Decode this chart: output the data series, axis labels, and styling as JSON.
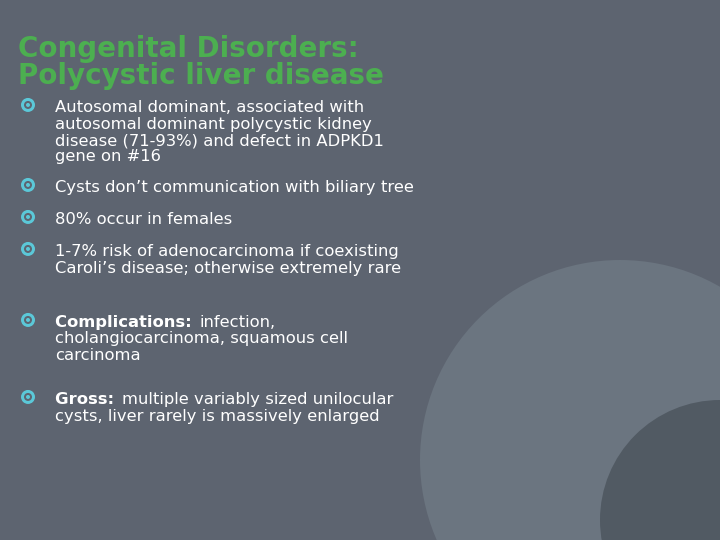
{
  "title_line1": "Congenital Disorders:",
  "title_line2": "Polycystic liver disease",
  "title_color": "#4CAF50",
  "background_color": "#5d6470",
  "text_color": "#ffffff",
  "bullet_color": "#5bc8d8",
  "bullets": [
    {
      "lines": [
        {
          "bold": false,
          "text": "Autosomal dominant, associated with"
        },
        {
          "bold": false,
          "text": "autosomal dominant polycystic kidney"
        },
        {
          "bold": false,
          "text": "disease (71-93%) and defect in ADPKD1"
        },
        {
          "bold": false,
          "text": "gene on #16"
        }
      ]
    },
    {
      "lines": [
        {
          "bold": false,
          "text": "Cysts don’t communication with biliary tree"
        }
      ]
    },
    {
      "lines": [
        {
          "bold": false,
          "text": "80% occur in females"
        }
      ]
    },
    {
      "lines": [
        {
          "bold": false,
          "text": "1-7% risk of adenocarcinoma if coexisting"
        },
        {
          "bold": false,
          "text": "Caroli’s disease; otherwise extremely rare"
        }
      ]
    },
    {
      "lines": [
        {
          "bold": "Complications: ",
          "text": "infection,"
        },
        {
          "bold": false,
          "text": "cholangiocarcinoma, squamous cell"
        },
        {
          "bold": false,
          "text": "carcinoma"
        }
      ]
    },
    {
      "lines": [
        {
          "bold": "Gross: ",
          "text": "multiple variably sized unilocular"
        },
        {
          "bold": false,
          "text": "cysts, liver rarely is massively enlarged"
        }
      ]
    }
  ],
  "figsize": [
    7.2,
    5.4
  ],
  "dpi": 100
}
